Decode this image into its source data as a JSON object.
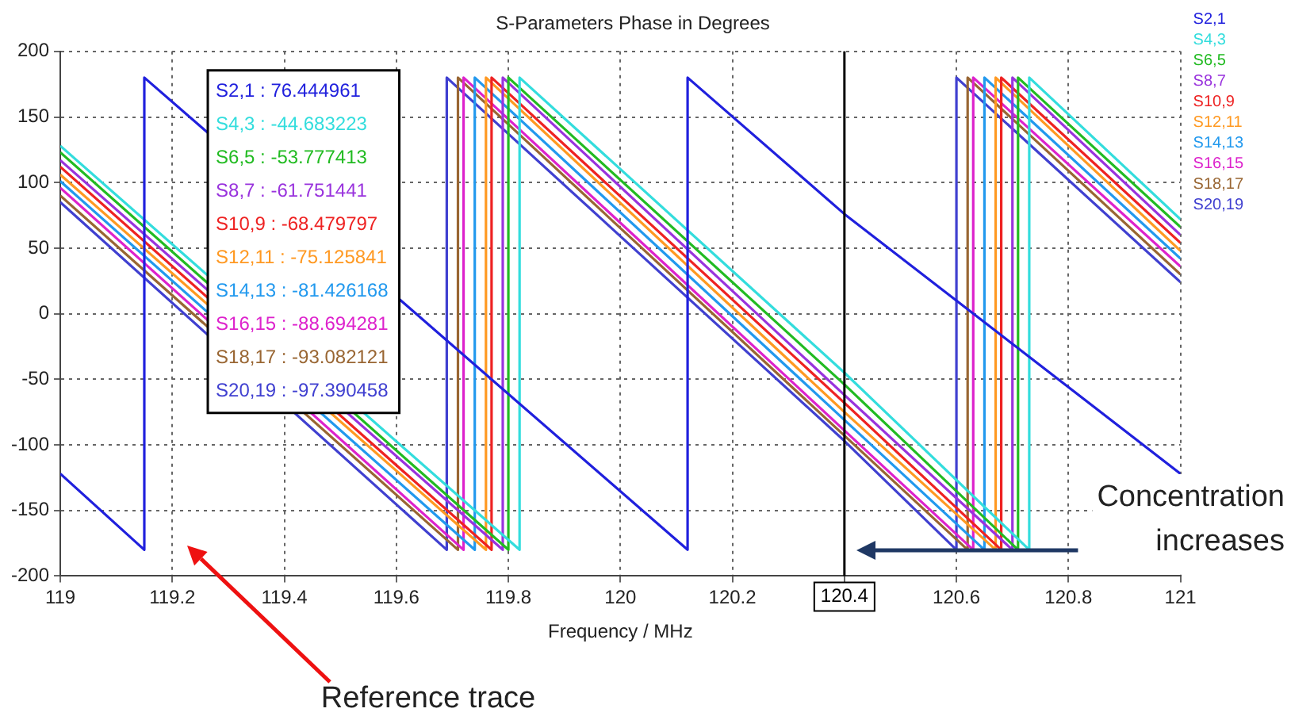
{
  "chart_data": {
    "type": "line",
    "title": "S-Parameters Phase in Degrees",
    "xlabel": "Frequency / MHz",
    "xlim": [
      119,
      121
    ],
    "xticks": [
      119,
      119.2,
      119.4,
      119.6,
      119.8,
      120,
      120.2,
      120.4,
      120.6,
      120.8,
      121
    ],
    "ylim": [
      -200,
      200
    ],
    "yticks": [
      -200,
      -150,
      -100,
      -50,
      0,
      50,
      100,
      150,
      200
    ],
    "grid": true,
    "legend": "right",
    "line_style": "solid",
    "series": [
      {
        "name": "S2,1",
        "color": "#2020dd",
        "x": [
          119,
          119.15,
          119.15,
          120.12,
          120.12,
          120.4,
          121
        ],
        "values": [
          -122,
          -180,
          180,
          -180,
          180,
          76,
          -122
        ]
      },
      {
        "name": "S4,3",
        "color": "#33dddd",
        "x": [
          119,
          119.82,
          119.82,
          120.4,
          120.73,
          120.73,
          121
        ],
        "values": [
          128,
          -180,
          180,
          -45,
          -180,
          180,
          72
        ]
      },
      {
        "name": "S6,5",
        "color": "#22bb22",
        "x": [
          119,
          119.8,
          119.8,
          120.4,
          120.71,
          120.71,
          121
        ],
        "values": [
          123,
          -180,
          180,
          -54,
          -180,
          180,
          66
        ]
      },
      {
        "name": "S8,7",
        "color": "#9933dd",
        "x": [
          119,
          119.79,
          119.79,
          120.4,
          120.7,
          120.7,
          121
        ],
        "values": [
          117,
          -180,
          180,
          -62,
          -180,
          180,
          60
        ]
      },
      {
        "name": "S10,9",
        "color": "#ee2222",
        "x": [
          119,
          119.77,
          119.77,
          120.4,
          120.68,
          120.68,
          121
        ],
        "values": [
          112,
          -180,
          180,
          -68,
          -180,
          180,
          54
        ]
      },
      {
        "name": "S12,11",
        "color": "#ff9922",
        "x": [
          119,
          119.76,
          119.76,
          120.4,
          120.67,
          120.67,
          121
        ],
        "values": [
          106,
          -180,
          180,
          -75,
          -180,
          180,
          48
        ]
      },
      {
        "name": "S14,13",
        "color": "#2299ee",
        "x": [
          119,
          119.74,
          119.74,
          120.4,
          120.65,
          120.65,
          121
        ],
        "values": [
          101,
          -180,
          180,
          -81,
          -180,
          180,
          42
        ]
      },
      {
        "name": "S16,15",
        "color": "#dd22cc",
        "x": [
          119,
          119.72,
          119.72,
          120.4,
          120.63,
          120.63,
          121
        ],
        "values": [
          96,
          -180,
          180,
          -89,
          -180,
          180,
          36
        ]
      },
      {
        "name": "S18,17",
        "color": "#996633",
        "x": [
          119,
          119.71,
          119.71,
          120.4,
          120.62,
          120.62,
          121
        ],
        "values": [
          90,
          -180,
          180,
          -93,
          -180,
          180,
          30
        ]
      },
      {
        "name": "S20,19",
        "color": "#4040d0",
        "x": [
          119,
          119.69,
          119.69,
          120.4,
          120.6,
          120.6,
          121
        ],
        "values": [
          85,
          -180,
          180,
          -97,
          -180,
          180,
          24
        ]
      }
    ],
    "ref_lines": [
      {
        "axis": "x",
        "value": 120.4,
        "label": "120.4",
        "color": "#000000"
      }
    ],
    "annotations": [
      "S2,1 : 76.444961",
      "S4,3 : -44.683223",
      "S6,5 : -53.777413",
      "S8,7 : -61.751441",
      "S10,9 : -68.479797",
      "S12,11 : -75.125841",
      "S14,13 : -81.426168",
      "S16,15 : -88.694281",
      "S18,17 : -93.082121",
      "S20,19 : -97.390458",
      "Concentration increases",
      "Reference trace"
    ]
  }
}
